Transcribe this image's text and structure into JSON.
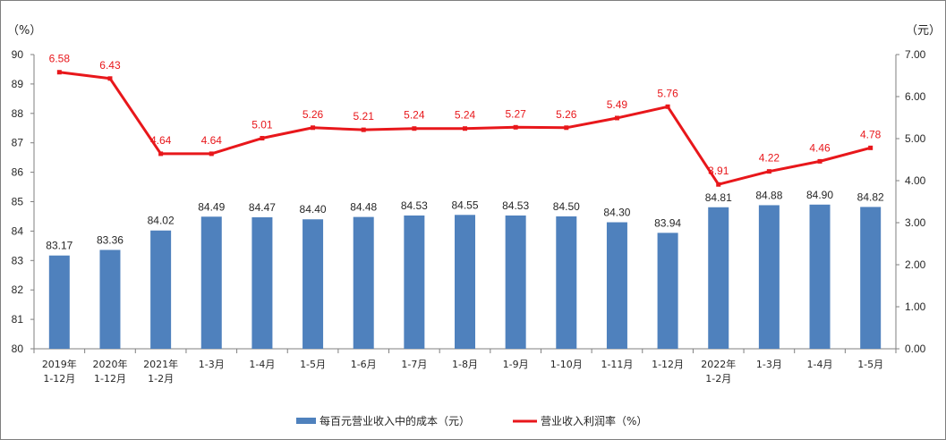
{
  "chart_data": {
    "type": "bar",
    "categories": [
      [
        "2019年",
        "1-12月"
      ],
      [
        "2020年",
        "1-12月"
      ],
      [
        "2021年",
        "1-2月"
      ],
      [
        "1-3月"
      ],
      [
        "1-4月"
      ],
      [
        "1-5月"
      ],
      [
        "1-6月"
      ],
      [
        "1-7月"
      ],
      [
        "1-8月"
      ],
      [
        "1-9月"
      ],
      [
        "1-10月"
      ],
      [
        "1-11月"
      ],
      [
        "1-12月"
      ],
      [
        "2022年",
        "1-2月"
      ],
      [
        "1-3月"
      ],
      [
        "1-4月"
      ],
      [
        "1-5月"
      ]
    ],
    "series": [
      {
        "name": "每百元营业收入中的成本（元）",
        "type": "bar",
        "axis": "left",
        "color": "#4f81bd",
        "values": [
          83.17,
          83.36,
          84.02,
          84.49,
          84.47,
          84.4,
          84.48,
          84.53,
          84.55,
          84.53,
          84.5,
          84.3,
          83.94,
          84.81,
          84.88,
          84.9,
          84.82
        ],
        "labels": [
          "83.17",
          "83.36",
          "84.02",
          "84.49",
          "84.47",
          "84.40",
          "84.48",
          "84.53",
          "84.55",
          "84.53",
          "84.50",
          "84.30",
          "83.94",
          "84.81",
          "84.88",
          "84.90",
          "84.82"
        ]
      },
      {
        "name": "营业收入利润率（%）",
        "type": "line",
        "axis": "right",
        "color": "#e8171b",
        "values": [
          6.58,
          6.43,
          4.64,
          4.64,
          5.01,
          5.26,
          5.21,
          5.24,
          5.24,
          5.27,
          5.26,
          5.49,
          5.76,
          3.91,
          4.22,
          4.46,
          4.78
        ],
        "labels": [
          "6.58",
          "6.43",
          "4.64",
          "4.64",
          "5.01",
          "5.26",
          "5.21",
          "5.24",
          "5.24",
          "5.27",
          "5.26",
          "5.49",
          "5.76",
          "3.91",
          "4.22",
          "4.46",
          "4.78"
        ]
      }
    ],
    "y_left": {
      "unit": "（%）",
      "ylim": [
        80,
        90
      ],
      "ticks": [
        "80",
        "81",
        "82",
        "83",
        "84",
        "85",
        "86",
        "87",
        "88",
        "89",
        "90"
      ]
    },
    "y_right": {
      "unit": "（元）",
      "ylim": [
        0,
        7
      ],
      "ticks": [
        "0.00",
        "1.00",
        "2.00",
        "3.00",
        "4.00",
        "5.00",
        "6.00",
        "7.00"
      ]
    },
    "grid": false,
    "legend_position": "bottom-center"
  }
}
